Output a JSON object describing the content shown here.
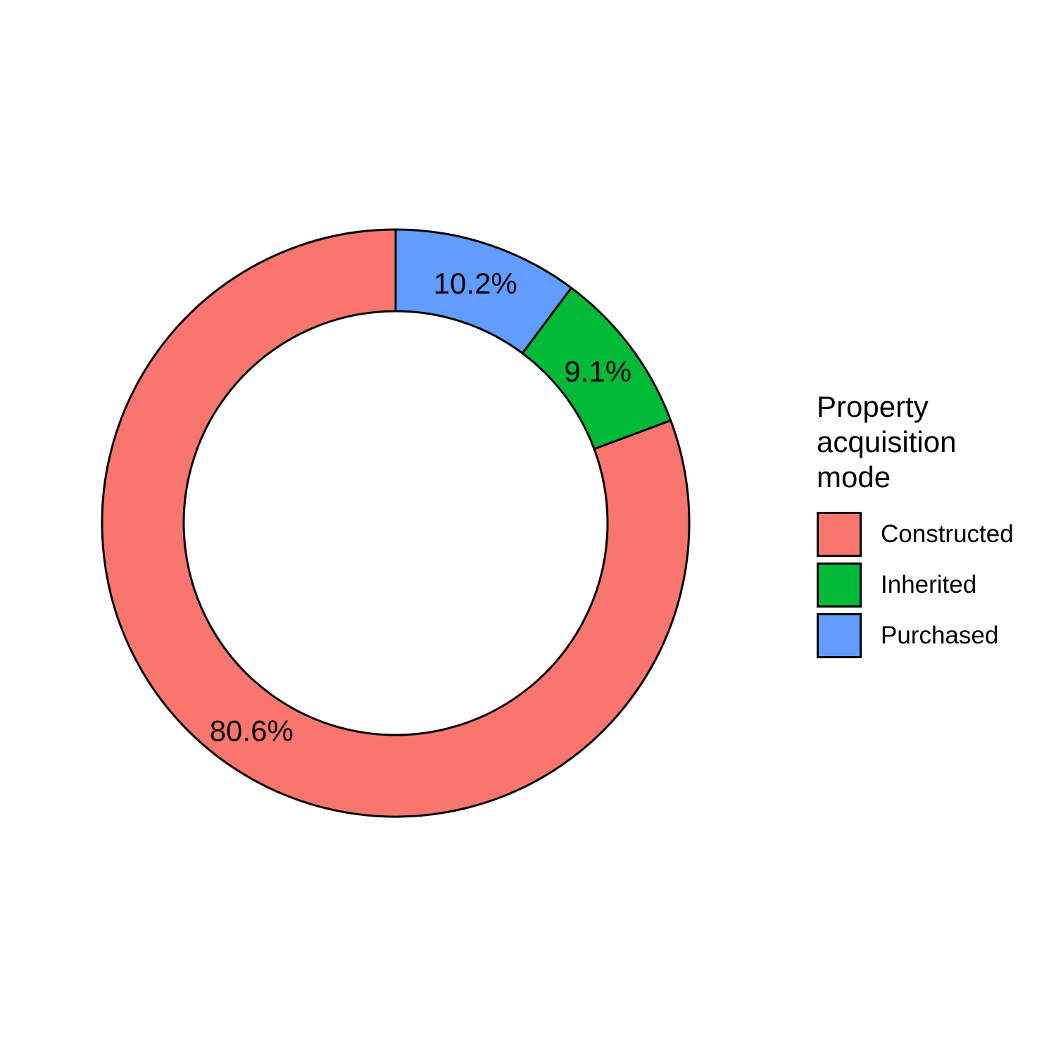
{
  "chart_data": {
    "type": "pie",
    "variant": "donut",
    "slices": [
      {
        "name": "Constructed",
        "value": 80.6,
        "label": "80.6%",
        "color": "#F8766D"
      },
      {
        "name": "Inherited",
        "value": 9.1,
        "label": "9.1%",
        "color": "#00BA38"
      },
      {
        "name": "Purchased",
        "value": 10.2,
        "label": "10.2%",
        "color": "#619CFF"
      }
    ],
    "legend": {
      "title_lines": [
        "Property",
        "acquisition",
        "mode"
      ],
      "placement": "right"
    }
  }
}
